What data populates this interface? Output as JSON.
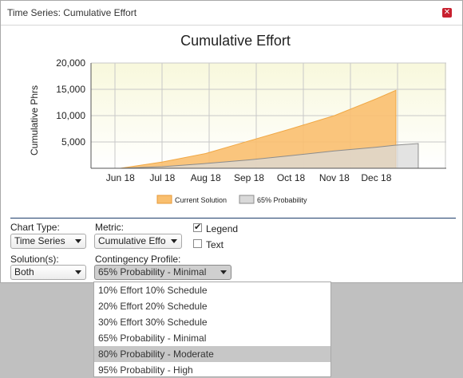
{
  "window": {
    "title": "Time Series: Cumulative Effort",
    "close_icon": "close-icon"
  },
  "chart_data": {
    "type": "area",
    "title": "Cumulative Effort",
    "xlabel": "",
    "ylabel": "Cumulative Phrs",
    "x_ticks": [
      "Jun 18",
      "Jul 18",
      "Aug 18",
      "Sep 18",
      "Oct 18",
      "Nov 18",
      "Dec 18"
    ],
    "y_ticks": [
      "5,000",
      "10,000",
      "15,000",
      "20,000"
    ],
    "ylim": [
      0,
      20000
    ],
    "grid": true,
    "legend_position": "bottom",
    "x": [
      "2018-06-01",
      "2018-07-01",
      "2018-08-01",
      "2018-09-01",
      "2018-10-01",
      "2018-11-01",
      "2018-12-01",
      "2018-12-15",
      "2018-12-31"
    ],
    "series": [
      {
        "name": "Current Solution",
        "color": "#f9bf6f",
        "values": [
          0,
          1200,
          2800,
          5200,
          7500,
          10000,
          13200,
          14800,
          null
        ]
      },
      {
        "name": "65% Probability",
        "color": "#d9d9d9",
        "values": [
          0,
          300,
          900,
          1600,
          2400,
          3300,
          4000,
          4400,
          4700
        ]
      }
    ]
  },
  "controls": {
    "chart_type_label": "Chart Type:",
    "chart_type_value": "Time Series",
    "metric_label": "Metric:",
    "metric_value": "Cumulative Effo",
    "legend_label": "Legend",
    "legend_checked": true,
    "text_label": "Text",
    "text_checked": false,
    "solutions_label": "Solution(s):",
    "solutions_value": "Both",
    "contingency_label": "Contingency Profile:",
    "contingency_value": "65% Probability - Minimal"
  },
  "dropdown": {
    "options": [
      "10% Effort 10% Schedule",
      "20% Effort 20% Schedule",
      "30% Effort 30% Schedule",
      "65% Probability - Minimal",
      "80% Probability - Moderate",
      "95% Probability - High"
    ],
    "highlighted_index": 4
  }
}
